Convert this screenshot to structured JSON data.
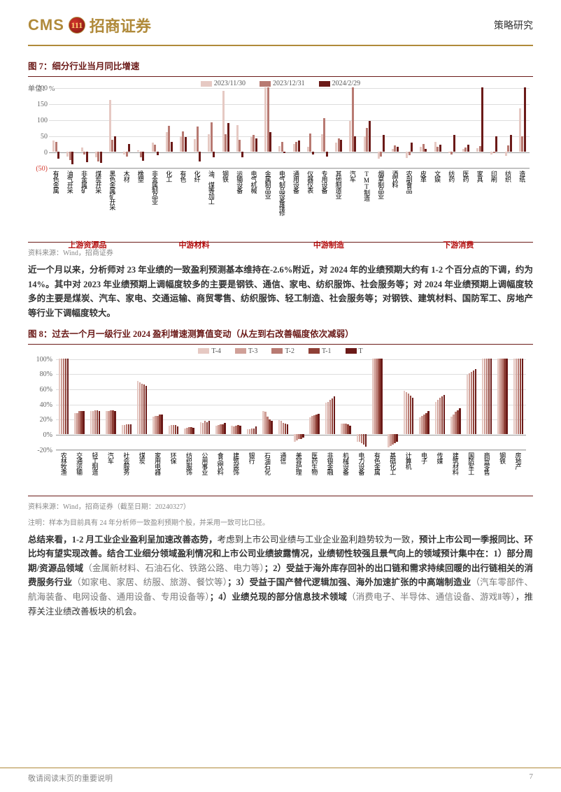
{
  "header": {
    "cms": "CMS",
    "logo_inner": "111",
    "brand_cn": "招商证券",
    "doc_type": "策略研究"
  },
  "fig7": {
    "label": "图 7：",
    "title": "细分行业当月同比增速",
    "unit": "单位：%",
    "legend": [
      {
        "label": "2023/11/30",
        "color": "#e6c9c3"
      },
      {
        "label": "2023/12/31",
        "color": "#b87a72"
      },
      {
        "label": "2024/2/29",
        "color": "#6b1a18"
      }
    ],
    "ylim": [
      -50,
      200
    ],
    "yticks": [
      -50,
      0,
      50,
      100,
      150,
      200
    ],
    "neg_tick_color": "#d43a2f",
    "categories": [
      "有色金属",
      "油气开采",
      "非金属矿",
      "煤炭开采",
      "黑色金属矿开采",
      "木材",
      "橡塑",
      "非金属制品业",
      "化工",
      "有色",
      "化纤",
      "油、煤等加工",
      "钢铁",
      "运输设备",
      "电气机械",
      "金属制品业",
      "电气制品设备维修",
      "通用设备",
      "仪器仪表",
      "专用设备",
      "其他制造业",
      "汽车",
      "TMT制造",
      "烟草制品业",
      "酒饮料",
      "农副食品",
      "皮革",
      "文娱",
      "纺药",
      "医药",
      "家具",
      "印刷",
      "纺织",
      "造纸"
    ],
    "sectors": [
      {
        "label": "上游资源品",
        "left_pct": 4
      },
      {
        "label": "中游材料",
        "left_pct": 27
      },
      {
        "label": "中游制造",
        "left_pct": 55
      },
      {
        "label": "下游消费",
        "left_pct": 82
      }
    ],
    "series": [
      [
        35,
        -15,
        12,
        -18,
        160,
        -8,
        5,
        28,
        60,
        48,
        40,
        55,
        190,
        82,
        45,
        200,
        18,
        25,
        15,
        55,
        28,
        95,
        48,
        -22,
        8,
        -20,
        15,
        30,
        -5,
        8,
        10,
        -8,
        -12,
        135
      ],
      [
        30,
        -25,
        -8,
        -30,
        38,
        -15,
        -18,
        22,
        80,
        62,
        78,
        92,
        55,
        38,
        52,
        200,
        30,
        30,
        56,
        105,
        42,
        200,
        75,
        -15,
        20,
        -10,
        25,
        15,
        -8,
        12,
        18,
        -5,
        20,
        48
      ],
      [
        -22,
        -40,
        -32,
        -35,
        48,
        25,
        -28,
        -10,
        30,
        45,
        -30,
        -18,
        90,
        -18,
        42,
        60,
        -5,
        35,
        -8,
        -15,
        38,
        48,
        95,
        52,
        15,
        28,
        8,
        22,
        52,
        22,
        200,
        48,
        52,
        200
      ]
    ],
    "source": "资料来源：Wind，招商证券"
  },
  "para1": "近一个月以来，分析师对 23 年业绩的一致盈利预测基本维持在-2.6%附近，对 2024 年的业绩预期大约有 1-2 个百分点的下调，约为 14%。其中对 2023 年业绩预期上调幅度较多的主要是钢铁、通信、家电、纺织服饰、社会服务等；对 2024 年业绩预期上调幅度较多的主要是煤炭、汽车、家电、交通运输、商贸零售、纺织服饰、轻工制造、社会服务等；对钢铁、建筑材料、国防军工、房地产等行业下调幅度较大。",
  "fig8": {
    "label": "图 8：",
    "title": "过去一个月一级行业 2024 盈利增速测算值变动（从左到右改善幅度依次减弱）",
    "legend": [
      {
        "label": "T-4",
        "color": "#e6c9c3"
      },
      {
        "label": "T-3",
        "color": "#d0a098"
      },
      {
        "label": "T-2",
        "color": "#b87a72"
      },
      {
        "label": "T-1",
        "color": "#8f4037"
      },
      {
        "label": "T",
        "color": "#6b1a18"
      }
    ],
    "ylim": [
      -20,
      100
    ],
    "yticks": [
      -20,
      0,
      20,
      40,
      60,
      80,
      100
    ],
    "categories": [
      "农林牧渔",
      "交通运输",
      "轻工制造",
      "汽车",
      "社会服务",
      "煤炭",
      "家用电器",
      "环保",
      "纺织服饰",
      "公用事业",
      "食品饮料",
      "建筑装饰",
      "银行",
      "石油石化",
      "通信",
      "美容护理",
      "医药生物",
      "非银金融",
      "机械设备",
      "电力设备",
      "有色金属",
      "基础化工",
      "计算机",
      "电子",
      "传媒",
      "建筑材料",
      "国防军工",
      "商贸零售",
      "钢铁",
      "房地产"
    ],
    "series": [
      [
        100,
        28,
        30,
        30,
        12,
        70,
        23,
        11,
        7,
        16,
        11,
        11,
        6,
        30,
        18,
        -10,
        22,
        41,
        14,
        -10,
        100,
        -18,
        57,
        22,
        42,
        23,
        78,
        100,
        100,
        100
      ],
      [
        100,
        28,
        30,
        30,
        12,
        68,
        24,
        12,
        8,
        15,
        12,
        10,
        6,
        29,
        17,
        -8,
        24,
        42,
        14,
        -10,
        100,
        -16,
        55,
        24,
        45,
        26,
        80,
        100,
        100,
        100
      ],
      [
        100,
        30,
        31,
        31,
        13,
        66,
        24,
        12,
        9,
        17,
        13,
        11,
        7,
        23,
        15,
        -7,
        25,
        45,
        14,
        -12,
        100,
        -14,
        53,
        26,
        48,
        29,
        82,
        100,
        100,
        100
      ],
      [
        100,
        30,
        31,
        31,
        13,
        65,
        26,
        12,
        9,
        16,
        13,
        12,
        7,
        19,
        14,
        -7,
        26,
        47,
        13,
        -14,
        100,
        -12,
        51,
        28,
        50,
        31,
        84,
        100,
        100,
        100
      ],
      [
        100,
        30,
        30,
        30,
        13,
        64,
        26,
        10,
        8,
        17,
        15,
        11,
        10,
        17,
        13,
        -5,
        27,
        50,
        11,
        -17,
        100,
        -10,
        48,
        30,
        52,
        34,
        86,
        100,
        100,
        100
      ]
    ],
    "source": "资料来源：Wind，招商证券（截至日期：20240327）",
    "note": "注明：样本为目前具有 24 年分析师一致盈利预期个股，并采用一致可比口径。"
  },
  "para2_parts": {
    "p1": "总结来看，1-2 月工业企业盈利呈加速改善态势，",
    "p2": "考虑到上市公司业绩与工业企业盈利趋势较为一致，",
    "p3": "预计上市公司一季报同比、环比均有望实现改善。结合工业细分领域盈利情况和上市公司业绩披露情况，业绩韧性较强且景气向上的领域预计集中在：1）部分周期/资源品领域",
    "p4": "（金属新材料、石油石化、铁路公路、电力等）",
    "p5": "；2）受益于海外库存回补的出口链和需求持续回暖的出行链相关的消费服务行业",
    "p6": "（如家电、家居、纺服、旅游、餐饮等）",
    "p7": "；3）受益于国产替代逻辑加强、海外加速扩张的中高端制造业",
    "p8": "（汽车零部件、航海装备、电网设备、通用设备、专用设备等）",
    "p9": "；4）业绩兑现的部分信息技术领域",
    "p10": "（消费电子、半导体、通信设备、游戏Ⅱ等）",
    "p11": "，推荐关注业绩改善板块的机会。"
  },
  "footer": {
    "disclaimer": "敬请阅读末页的重要说明",
    "page": "7"
  }
}
